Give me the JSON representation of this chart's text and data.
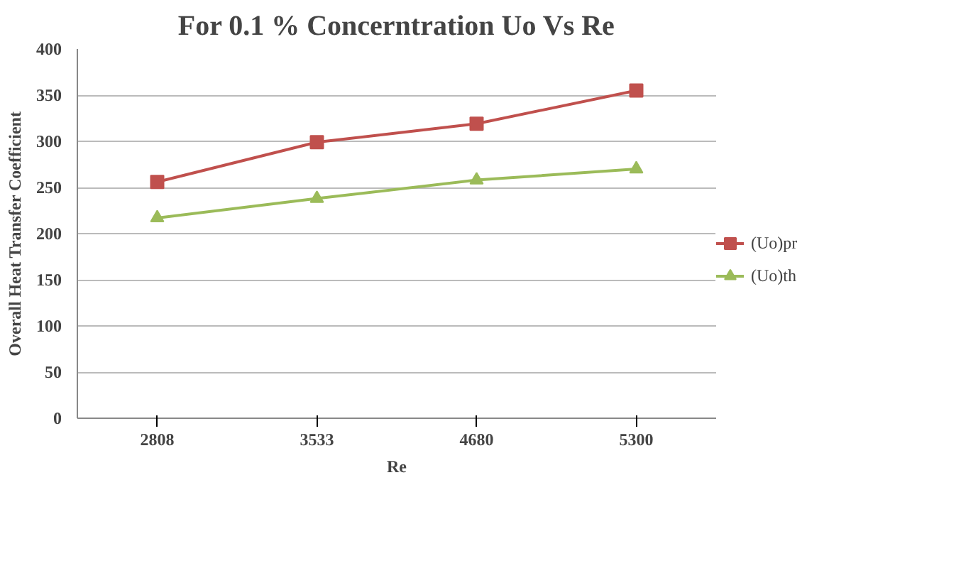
{
  "chart_data": {
    "type": "line",
    "title": "For 0.1 % Concerntration Uo Vs Re",
    "xlabel": "Re",
    "ylabel": "Overall Heat Transfer Coefficient",
    "categories": [
      "2808",
      "3533",
      "4680",
      "5300"
    ],
    "ylim": [
      0,
      400
    ],
    "yticks": [
      0,
      50,
      100,
      150,
      200,
      250,
      300,
      350,
      400
    ],
    "grid": "y",
    "legend": "right",
    "series": [
      {
        "name": "(Uo)pr",
        "color": "#c0504d",
        "marker": "square",
        "values": [
          256,
          299,
          319,
          355
        ]
      },
      {
        "name": "(Uo)th",
        "color": "#9bbb59",
        "marker": "triangle",
        "values": [
          217,
          238,
          258,
          270
        ]
      }
    ]
  }
}
